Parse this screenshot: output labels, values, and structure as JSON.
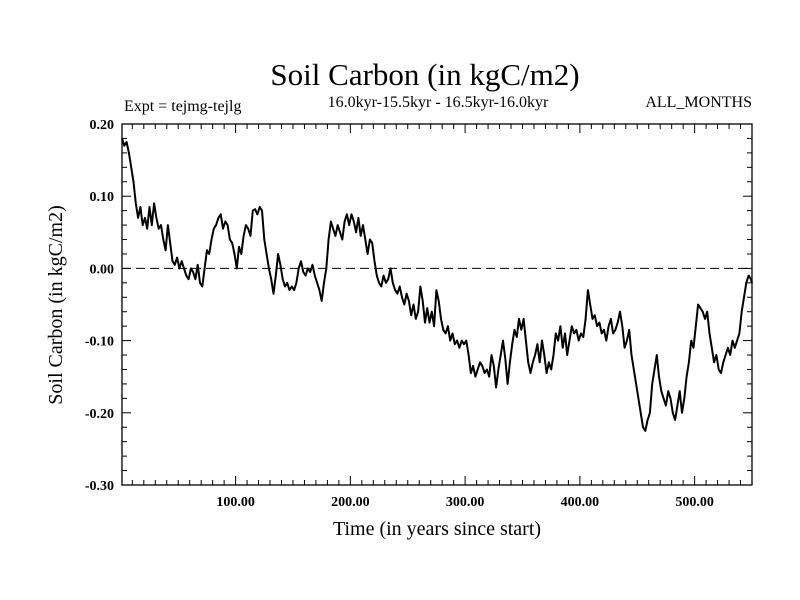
{
  "chart_data": {
    "type": "line",
    "title": "Soil Carbon (in kgC/m2)",
    "subtitle": "16.0kyr-15.5kyr - 16.5kyr-16.0kyr",
    "left_annotation": "Expt = tejmg-tejlg",
    "right_annotation": "ALL_MONTHS",
    "xlabel": "Time (in years since start)",
    "ylabel": "Soil Carbon (in kgC/m2)",
    "xlim": [
      1,
      550
    ],
    "ylim": [
      -0.3,
      0.2
    ],
    "xticks": [
      {
        "value": 100,
        "label": "100.00"
      },
      {
        "value": 200,
        "label": "200.00"
      },
      {
        "value": 300,
        "label": "300.00"
      },
      {
        "value": 400,
        "label": "400.00"
      },
      {
        "value": 500,
        "label": "500.00"
      }
    ],
    "yticks": [
      {
        "value": 0.2,
        "label": "0.20"
      },
      {
        "value": 0.1,
        "label": "0.10"
      },
      {
        "value": 0.0,
        "label": "0.00"
      },
      {
        "value": -0.1,
        "label": "-0.10"
      },
      {
        "value": -0.2,
        "label": "-0.20"
      },
      {
        "value": -0.3,
        "label": "-0.30"
      }
    ],
    "reference_line": {
      "value": 0.0,
      "style": "dashed"
    },
    "series": [
      {
        "name": "Soil Carbon",
        "points": [
          [
            1,
            0.18
          ],
          [
            3,
            0.17
          ],
          [
            5,
            0.175
          ],
          [
            7,
            0.16
          ],
          [
            9,
            0.14
          ],
          [
            11,
            0.12
          ],
          [
            13,
            0.09
          ],
          [
            15,
            0.07
          ],
          [
            17,
            0.085
          ],
          [
            19,
            0.06
          ],
          [
            21,
            0.07
          ],
          [
            23,
            0.055
          ],
          [
            25,
            0.085
          ],
          [
            27,
            0.06
          ],
          [
            29,
            0.09
          ],
          [
            31,
            0.07
          ],
          [
            33,
            0.055
          ],
          [
            35,
            0.06
          ],
          [
            37,
            0.04
          ],
          [
            39,
            0.025
          ],
          [
            41,
            0.06
          ],
          [
            43,
            0.035
          ],
          [
            45,
            0.01
          ],
          [
            47,
            0.005
          ],
          [
            49,
            0.015
          ],
          [
            51,
            0.0
          ],
          [
            53,
            0.01
          ],
          [
            55,
            0.0
          ],
          [
            57,
            -0.01
          ],
          [
            59,
            -0.015
          ],
          [
            61,
            0.0
          ],
          [
            63,
            -0.005
          ],
          [
            65,
            -0.015
          ],
          [
            67,
            0.005
          ],
          [
            69,
            -0.02
          ],
          [
            71,
            -0.025
          ],
          [
            73,
            0.0
          ],
          [
            75,
            0.025
          ],
          [
            77,
            0.02
          ],
          [
            79,
            0.04
          ],
          [
            81,
            0.055
          ],
          [
            83,
            0.06
          ],
          [
            85,
            0.07
          ],
          [
            87,
            0.075
          ],
          [
            89,
            0.055
          ],
          [
            91,
            0.065
          ],
          [
            93,
            0.06
          ],
          [
            95,
            0.04
          ],
          [
            97,
            0.035
          ],
          [
            99,
            0.02
          ],
          [
            101,
            0.0
          ],
          [
            103,
            0.03
          ],
          [
            105,
            0.02
          ],
          [
            107,
            0.045
          ],
          [
            109,
            0.06
          ],
          [
            111,
            0.055
          ],
          [
            113,
            0.045
          ],
          [
            115,
            0.08
          ],
          [
            117,
            0.082
          ],
          [
            119,
            0.075
          ],
          [
            121,
            0.085
          ],
          [
            123,
            0.08
          ],
          [
            125,
            0.04
          ],
          [
            127,
            0.02
          ],
          [
            129,
            0.0
          ],
          [
            131,
            -0.015
          ],
          [
            133,
            -0.035
          ],
          [
            135,
            -0.01
          ],
          [
            137,
            0.02
          ],
          [
            139,
            0.005
          ],
          [
            141,
            -0.015
          ],
          [
            143,
            -0.025
          ],
          [
            145,
            -0.02
          ],
          [
            147,
            -0.03
          ],
          [
            149,
            -0.025
          ],
          [
            151,
            -0.03
          ],
          [
            153,
            -0.02
          ],
          [
            155,
            0.0
          ],
          [
            157,
            0.01
          ],
          [
            159,
            -0.005
          ],
          [
            161,
            -0.01
          ],
          [
            163,
            0.0
          ],
          [
            165,
            -0.005
          ],
          [
            167,
            0.005
          ],
          [
            169,
            -0.01
          ],
          [
            171,
            -0.02
          ],
          [
            173,
            -0.03
          ],
          [
            175,
            -0.045
          ],
          [
            177,
            -0.02
          ],
          [
            179,
            0.0
          ],
          [
            181,
            0.04
          ],
          [
            183,
            0.065
          ],
          [
            185,
            0.055
          ],
          [
            187,
            0.045
          ],
          [
            189,
            0.06
          ],
          [
            191,
            0.05
          ],
          [
            193,
            0.04
          ],
          [
            195,
            0.065
          ],
          [
            197,
            0.075
          ],
          [
            199,
            0.06
          ],
          [
            201,
            0.075
          ],
          [
            203,
            0.065
          ],
          [
            205,
            0.05
          ],
          [
            207,
            0.07
          ],
          [
            209,
            0.045
          ],
          [
            211,
            0.06
          ],
          [
            213,
            0.04
          ],
          [
            215,
            0.02
          ],
          [
            217,
            0.04
          ],
          [
            219,
            0.035
          ],
          [
            221,
            0.01
          ],
          [
            223,
            -0.01
          ],
          [
            225,
            -0.02
          ],
          [
            227,
            -0.025
          ],
          [
            229,
            -0.01
          ],
          [
            231,
            -0.02
          ],
          [
            233,
            -0.015
          ],
          [
            235,
            0.0
          ],
          [
            237,
            -0.02
          ],
          [
            239,
            -0.03
          ],
          [
            241,
            -0.035
          ],
          [
            243,
            -0.025
          ],
          [
            245,
            -0.04
          ],
          [
            247,
            -0.05
          ],
          [
            249,
            -0.035
          ],
          [
            251,
            -0.045
          ],
          [
            253,
            -0.065
          ],
          [
            255,
            -0.05
          ],
          [
            257,
            -0.07
          ],
          [
            259,
            -0.06
          ],
          [
            261,
            -0.025
          ],
          [
            263,
            -0.045
          ],
          [
            265,
            -0.075
          ],
          [
            267,
            -0.055
          ],
          [
            269,
            -0.075
          ],
          [
            271,
            -0.06
          ],
          [
            273,
            -0.08
          ],
          [
            275,
            -0.03
          ],
          [
            277,
            -0.045
          ],
          [
            279,
            -0.07
          ],
          [
            281,
            -0.085
          ],
          [
            283,
            -0.09
          ],
          [
            285,
            -0.08
          ],
          [
            287,
            -0.1
          ],
          [
            289,
            -0.09
          ],
          [
            291,
            -0.105
          ],
          [
            293,
            -0.1
          ],
          [
            295,
            -0.11
          ],
          [
            297,
            -0.1
          ],
          [
            299,
            -0.105
          ],
          [
            301,
            -0.1
          ],
          [
            303,
            -0.12
          ],
          [
            305,
            -0.145
          ],
          [
            307,
            -0.135
          ],
          [
            309,
            -0.15
          ],
          [
            311,
            -0.14
          ],
          [
            313,
            -0.13
          ],
          [
            315,
            -0.135
          ],
          [
            317,
            -0.145
          ],
          [
            319,
            -0.14
          ],
          [
            321,
            -0.15
          ],
          [
            323,
            -0.12
          ],
          [
            325,
            -0.135
          ],
          [
            327,
            -0.165
          ],
          [
            329,
            -0.14
          ],
          [
            331,
            -0.12
          ],
          [
            333,
            -0.1
          ],
          [
            335,
            -0.125
          ],
          [
            337,
            -0.16
          ],
          [
            339,
            -0.13
          ],
          [
            341,
            -0.105
          ],
          [
            343,
            -0.085
          ],
          [
            345,
            -0.095
          ],
          [
            347,
            -0.07
          ],
          [
            349,
            -0.085
          ],
          [
            351,
            -0.07
          ],
          [
            353,
            -0.1
          ],
          [
            355,
            -0.13
          ],
          [
            357,
            -0.145
          ],
          [
            359,
            -0.13
          ],
          [
            361,
            -0.12
          ],
          [
            363,
            -0.105
          ],
          [
            365,
            -0.13
          ],
          [
            367,
            -0.1
          ],
          [
            369,
            -0.12
          ],
          [
            371,
            -0.145
          ],
          [
            373,
            -0.13
          ],
          [
            375,
            -0.14
          ],
          [
            377,
            -0.12
          ],
          [
            379,
            -0.09
          ],
          [
            381,
            -0.1
          ],
          [
            383,
            -0.08
          ],
          [
            385,
            -0.11
          ],
          [
            387,
            -0.09
          ],
          [
            389,
            -0.12
          ],
          [
            391,
            -0.1
          ],
          [
            393,
            -0.08
          ],
          [
            395,
            -0.09
          ],
          [
            397,
            -0.085
          ],
          [
            399,
            -0.1
          ],
          [
            401,
            -0.09
          ],
          [
            403,
            -0.095
          ],
          [
            405,
            -0.07
          ],
          [
            407,
            -0.03
          ],
          [
            409,
            -0.05
          ],
          [
            411,
            -0.07
          ],
          [
            413,
            -0.065
          ],
          [
            415,
            -0.08
          ],
          [
            417,
            -0.075
          ],
          [
            419,
            -0.09
          ],
          [
            421,
            -0.085
          ],
          [
            423,
            -0.1
          ],
          [
            425,
            -0.08
          ],
          [
            427,
            -0.07
          ],
          [
            429,
            -0.09
          ],
          [
            431,
            -0.085
          ],
          [
            433,
            -0.075
          ],
          [
            435,
            -0.06
          ],
          [
            437,
            -0.08
          ],
          [
            439,
            -0.11
          ],
          [
            441,
            -0.1
          ],
          [
            443,
            -0.085
          ],
          [
            445,
            -0.12
          ],
          [
            447,
            -0.14
          ],
          [
            449,
            -0.16
          ],
          [
            451,
            -0.18
          ],
          [
            453,
            -0.2
          ],
          [
            455,
            -0.22
          ],
          [
            457,
            -0.225
          ],
          [
            459,
            -0.21
          ],
          [
            461,
            -0.2
          ],
          [
            463,
            -0.16
          ],
          [
            465,
            -0.14
          ],
          [
            467,
            -0.12
          ],
          [
            469,
            -0.15
          ],
          [
            471,
            -0.17
          ],
          [
            473,
            -0.18
          ],
          [
            475,
            -0.19
          ],
          [
            477,
            -0.17
          ],
          [
            479,
            -0.18
          ],
          [
            481,
            -0.2
          ],
          [
            483,
            -0.21
          ],
          [
            485,
            -0.19
          ],
          [
            487,
            -0.17
          ],
          [
            489,
            -0.2
          ],
          [
            491,
            -0.18
          ],
          [
            493,
            -0.15
          ],
          [
            495,
            -0.13
          ],
          [
            497,
            -0.1
          ],
          [
            499,
            -0.11
          ],
          [
            501,
            -0.08
          ],
          [
            503,
            -0.05
          ],
          [
            505,
            -0.055
          ],
          [
            507,
            -0.06
          ],
          [
            509,
            -0.07
          ],
          [
            511,
            -0.06
          ],
          [
            513,
            -0.09
          ],
          [
            515,
            -0.11
          ],
          [
            517,
            -0.13
          ],
          [
            519,
            -0.12
          ],
          [
            521,
            -0.14
          ],
          [
            523,
            -0.145
          ],
          [
            525,
            -0.13
          ],
          [
            527,
            -0.12
          ],
          [
            529,
            -0.11
          ],
          [
            531,
            -0.12
          ],
          [
            533,
            -0.1
          ],
          [
            535,
            -0.11
          ],
          [
            537,
            -0.1
          ],
          [
            539,
            -0.09
          ],
          [
            541,
            -0.06
          ],
          [
            543,
            -0.04
          ],
          [
            545,
            -0.02
          ],
          [
            547,
            -0.01
          ],
          [
            549,
            -0.015
          ],
          [
            550,
            -0.02
          ]
        ]
      }
    ]
  }
}
